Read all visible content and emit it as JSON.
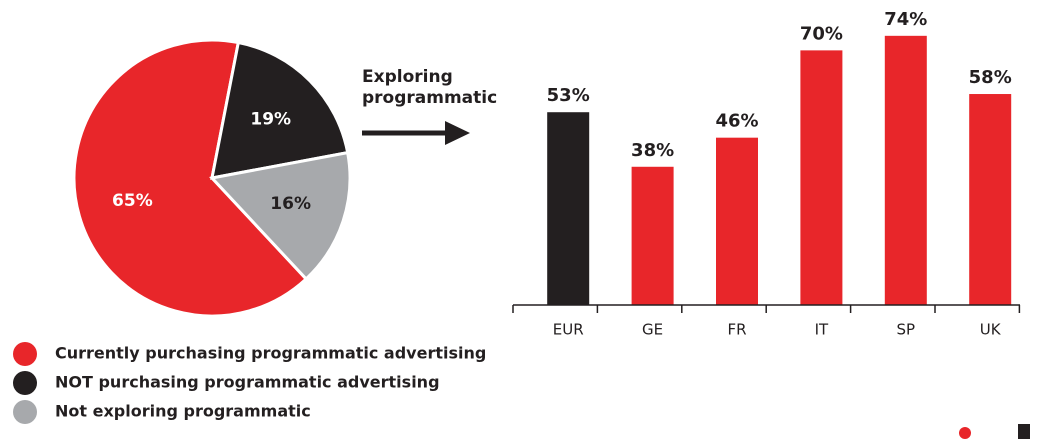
{
  "chart_data": [
    {
      "type": "pie",
      "categories": [
        "Currently purchasing programmatic advertising",
        "NOT purchasing programmatic advertising",
        "Not exploring programmatic"
      ],
      "values": [
        65,
        19,
        16
      ],
      "value_labels": [
        "65%",
        "19%",
        "16%"
      ],
      "colors": [
        "#e8262a",
        "#231f20",
        "#a7a9ac"
      ],
      "legend": "bottom-left"
    },
    {
      "type": "bar",
      "annotation": [
        "Exploring",
        "programmatic"
      ],
      "categories": [
        "EUR",
        "GE",
        "FR",
        "IT",
        "SP",
        "UK"
      ],
      "values": [
        53,
        38,
        46,
        70,
        74,
        58
      ],
      "value_labels": [
        "53%",
        "38%",
        "46%",
        "70%",
        "74%",
        "58%"
      ],
      "colors": [
        "#231f20",
        "#e8262a",
        "#e8262a",
        "#e8262a",
        "#e8262a",
        "#e8262a"
      ],
      "ylim": [
        0,
        80
      ]
    }
  ]
}
